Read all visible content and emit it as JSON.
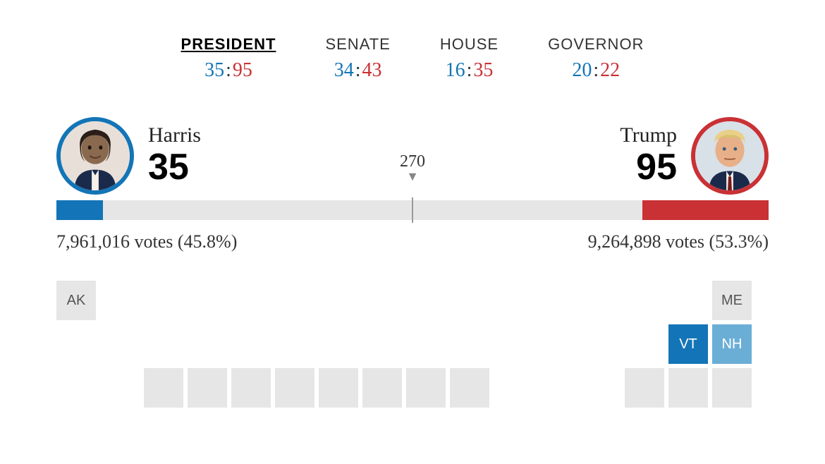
{
  "colors": {
    "dem": "#1375b7",
    "rep": "#c93135",
    "dem_lean": "#6aaed6",
    "undecided": "#e6e6e6",
    "text": "#333333",
    "background": "#ffffff"
  },
  "tabs": [
    {
      "label": "PRESIDENT",
      "active": true,
      "d": "35",
      "r": "95"
    },
    {
      "label": "SENATE",
      "active": false,
      "d": "34",
      "r": "43"
    },
    {
      "label": "HOUSE",
      "active": false,
      "d": "16",
      "r": "35"
    },
    {
      "label": "GOVERNOR",
      "active": false,
      "d": "20",
      "r": "22"
    }
  ],
  "threshold": "270",
  "progress": {
    "total_ev": 538,
    "d_ev": 35,
    "r_ev": 95,
    "d_pct_width": 6.5,
    "r_pct_width": 17.7
  },
  "candidates": {
    "d": {
      "name": "Harris",
      "ev": "35",
      "votes_line": "7,961,016 votes (45.8%)"
    },
    "r": {
      "name": "Trump",
      "ev": "95",
      "votes_line": "9,264,898 votes (53.3%)"
    }
  },
  "grid": {
    "cell_size": 56,
    "gap": 6
  },
  "states_visible": [
    {
      "code": "AK",
      "status": "undecided",
      "col": 0,
      "row": 0
    },
    {
      "code": "ME",
      "status": "undecided",
      "col": 15,
      "row": 0
    },
    {
      "code": "VT",
      "status": "d-win",
      "col": 14,
      "row": 1
    },
    {
      "code": "NH",
      "status": "d-lean",
      "col": 15,
      "row": 1
    },
    {
      "code": "",
      "status": "blank",
      "col": 2,
      "row": 2
    },
    {
      "code": "",
      "status": "blank",
      "col": 3,
      "row": 2
    },
    {
      "code": "",
      "status": "blank",
      "col": 4,
      "row": 2
    },
    {
      "code": "",
      "status": "blank",
      "col": 5,
      "row": 2
    },
    {
      "code": "",
      "status": "blank",
      "col": 6,
      "row": 2
    },
    {
      "code": "",
      "status": "blank",
      "col": 7,
      "row": 2
    },
    {
      "code": "",
      "status": "blank",
      "col": 8,
      "row": 2
    },
    {
      "code": "",
      "status": "blank",
      "col": 9,
      "row": 2
    },
    {
      "code": "",
      "status": "blank",
      "col": 13,
      "row": 2
    },
    {
      "code": "",
      "status": "blank",
      "col": 14,
      "row": 2
    },
    {
      "code": "",
      "status": "blank",
      "col": 15,
      "row": 2
    }
  ]
}
